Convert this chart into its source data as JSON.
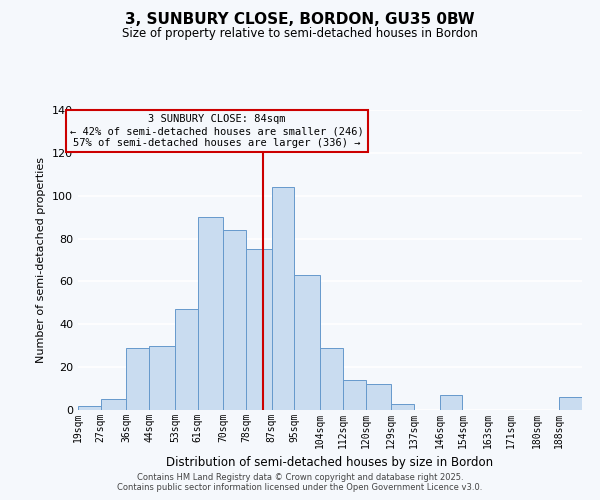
{
  "title": "3, SUNBURY CLOSE, BORDON, GU35 0BW",
  "subtitle": "Size of property relative to semi-detached houses in Bordon",
  "xlabel": "Distribution of semi-detached houses by size in Bordon",
  "ylabel": "Number of semi-detached properties",
  "bin_labels": [
    "19sqm",
    "27sqm",
    "36sqm",
    "44sqm",
    "53sqm",
    "61sqm",
    "70sqm",
    "78sqm",
    "87sqm",
    "95sqm",
    "104sqm",
    "112sqm",
    "120sqm",
    "129sqm",
    "137sqm",
    "146sqm",
    "154sqm",
    "163sqm",
    "171sqm",
    "180sqm",
    "188sqm"
  ],
  "bin_left": [
    19,
    27,
    36,
    44,
    53,
    61,
    70,
    78,
    87,
    95,
    104,
    112,
    120,
    129,
    137,
    146,
    154,
    163,
    171,
    180,
    188
  ],
  "bin_width": [
    8,
    9,
    8,
    9,
    8,
    9,
    8,
    9,
    8,
    9,
    8,
    8,
    9,
    8,
    9,
    8,
    9,
    8,
    9,
    8,
    8
  ],
  "counts": [
    2,
    5,
    29,
    30,
    47,
    90,
    84,
    75,
    104,
    63,
    29,
    14,
    12,
    3,
    0,
    7,
    0,
    0,
    0,
    0,
    6
  ],
  "bar_color": "#c9dcf0",
  "bar_edge_color": "#6699cc",
  "property_size": 84,
  "annotation_title": "3 SUNBURY CLOSE: 84sqm",
  "annotation_line1": "← 42% of semi-detached houses are smaller (246)",
  "annotation_line2": "57% of semi-detached houses are larger (336) →",
  "vline_color": "#cc0000",
  "annotation_box_edge": "#cc0000",
  "ylim": [
    0,
    140
  ],
  "xlim": [
    19,
    196
  ],
  "yticks": [
    0,
    20,
    40,
    60,
    80,
    100,
    120,
    140
  ],
  "footer_line1": "Contains HM Land Registry data © Crown copyright and database right 2025.",
  "footer_line2": "Contains public sector information licensed under the Open Government Licence v3.0.",
  "background_color": "#f5f8fc"
}
